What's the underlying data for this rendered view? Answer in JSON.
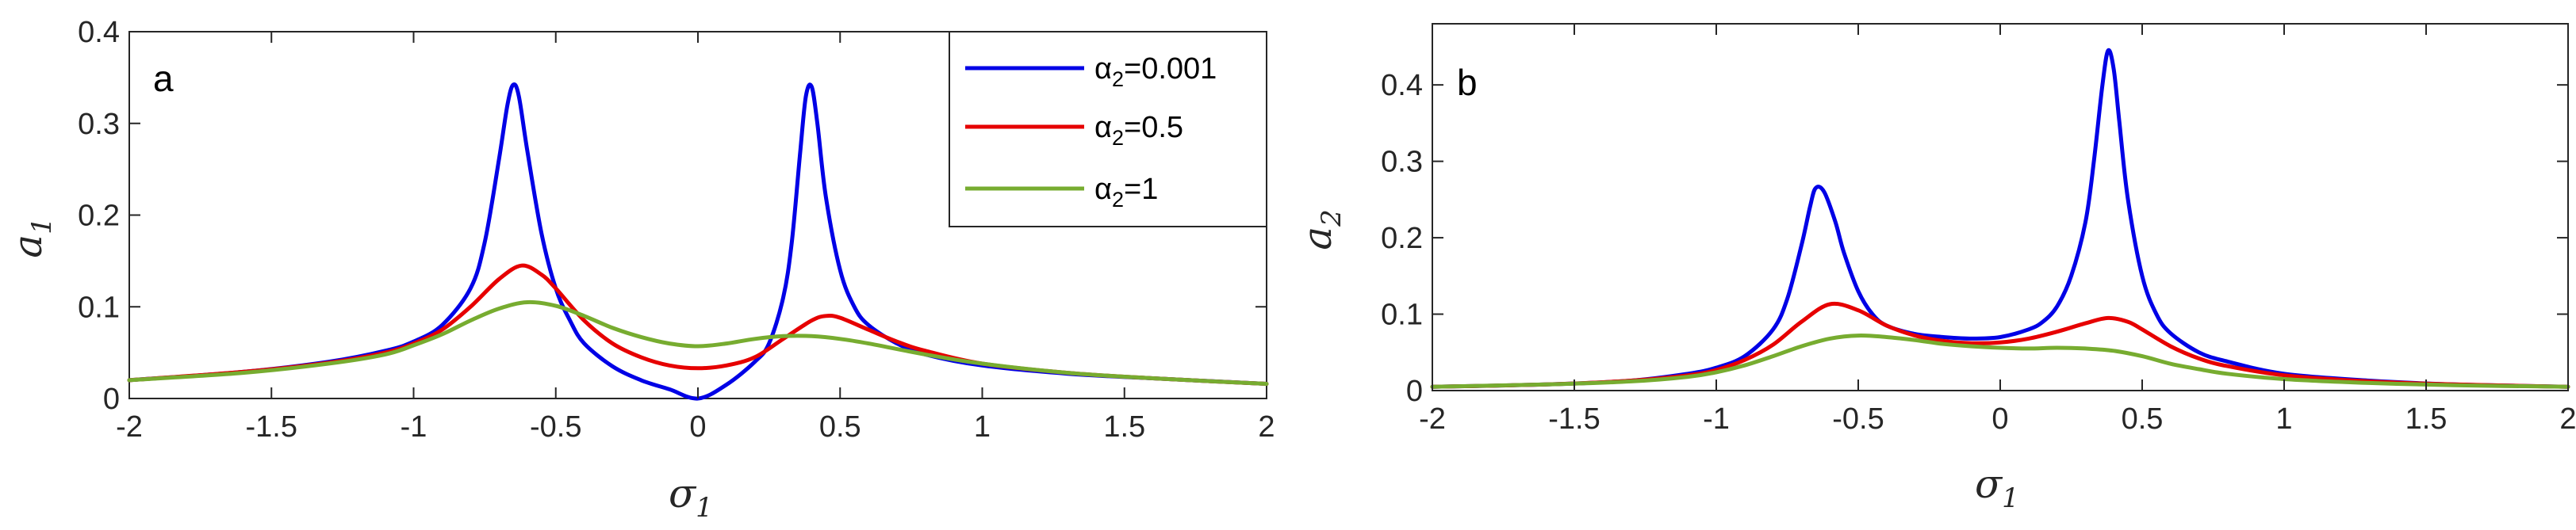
{
  "colors": {
    "alpha_0_001": "#0000E6",
    "alpha_0_5": "#E60000",
    "alpha_1": "#77AC30"
  },
  "chart_data": [
    {
      "type": "line",
      "panel_label": "a",
      "xlabel": "σ",
      "xlabel_sub": "1",
      "ylabel": "a",
      "ylabel_sub": "1",
      "xlim": [
        -2,
        2
      ],
      "ylim": [
        0,
        0.4
      ],
      "xticks": [
        -2,
        -1.5,
        -1,
        -0.5,
        0,
        0.5,
        1,
        1.5,
        2
      ],
      "xtick_labels": [
        "-2",
        "-1.5",
        "-1",
        "-0.5",
        "0",
        "0.5",
        "1",
        "1.5",
        "2"
      ],
      "yticks": [
        0,
        0.1,
        0.2,
        0.3,
        0.4
      ],
      "ytick_labels": [
        "0",
        "0.1",
        "0.2",
        "0.3",
        "0.4"
      ],
      "legend": {
        "position": "top-right",
        "entries": [
          {
            "prefix": "α",
            "sub": "2",
            "suffix": "=0.001",
            "color": "#0000E6"
          },
          {
            "prefix": "α",
            "sub": "2",
            "suffix": "=0.5",
            "color": "#E60000"
          },
          {
            "prefix": "α",
            "sub": "2",
            "suffix": "=1",
            "color": "#77AC30"
          }
        ]
      },
      "series": [
        {
          "color": "#0000E6",
          "x": [
            -2,
            -1.6,
            -1.3,
            -1.1,
            -1,
            -0.9,
            -0.8,
            -0.75,
            -0.7,
            -0.67,
            -0.65,
            -0.63,
            -0.6,
            -0.55,
            -0.5,
            -0.45,
            -0.4,
            -0.3,
            -0.2,
            -0.1,
            0,
            0.1,
            0.2,
            0.25,
            0.3,
            0.33,
            0.36,
            0.38,
            0.4,
            0.42,
            0.45,
            0.5,
            0.55,
            0.6,
            0.7,
            0.8,
            1,
            1.3,
            1.6,
            2
          ],
          "y": [
            0.02,
            0.029,
            0.04,
            0.052,
            0.062,
            0.08,
            0.12,
            0.17,
            0.26,
            0.32,
            0.342,
            0.33,
            0.27,
            0.18,
            0.12,
            0.085,
            0.06,
            0.035,
            0.02,
            0.01,
            0.0,
            0.015,
            0.04,
            0.06,
            0.11,
            0.17,
            0.27,
            0.33,
            0.34,
            0.3,
            0.22,
            0.14,
            0.1,
            0.08,
            0.06,
            0.048,
            0.036,
            0.027,
            0.022,
            0.016
          ]
        },
        {
          "color": "#E60000",
          "x": [
            -2,
            -1.6,
            -1.3,
            -1.1,
            -1,
            -0.9,
            -0.8,
            -0.7,
            -0.62,
            -0.55,
            -0.5,
            -0.4,
            -0.3,
            -0.2,
            -0.1,
            0,
            0.1,
            0.2,
            0.3,
            0.4,
            0.45,
            0.5,
            0.6,
            0.7,
            0.8,
            1,
            1.3,
            1.6,
            2
          ],
          "y": [
            0.02,
            0.029,
            0.039,
            0.05,
            0.06,
            0.075,
            0.1,
            0.13,
            0.145,
            0.135,
            0.12,
            0.085,
            0.06,
            0.045,
            0.036,
            0.033,
            0.036,
            0.045,
            0.065,
            0.085,
            0.09,
            0.088,
            0.075,
            0.062,
            0.052,
            0.038,
            0.028,
            0.022,
            0.016
          ]
        },
        {
          "color": "#77AC30",
          "x": [
            -2,
            -1.6,
            -1.3,
            -1.1,
            -1,
            -0.9,
            -0.8,
            -0.7,
            -0.6,
            -0.5,
            -0.4,
            -0.3,
            -0.2,
            -0.1,
            0,
            0.1,
            0.2,
            0.3,
            0.4,
            0.5,
            0.6,
            0.8,
            1,
            1.3,
            1.6,
            2
          ],
          "y": [
            0.02,
            0.028,
            0.038,
            0.048,
            0.058,
            0.07,
            0.085,
            0.098,
            0.105,
            0.101,
            0.09,
            0.077,
            0.067,
            0.06,
            0.057,
            0.06,
            0.065,
            0.068,
            0.068,
            0.065,
            0.06,
            0.048,
            0.038,
            0.028,
            0.022,
            0.016
          ]
        }
      ]
    },
    {
      "type": "line",
      "panel_label": "b",
      "xlabel": "σ",
      "xlabel_sub": "1",
      "ylabel": "a",
      "ylabel_sub": "2",
      "xlim": [
        -2,
        2
      ],
      "ylim": [
        0,
        0.48
      ],
      "xticks": [
        -2,
        -1.5,
        -1,
        -0.5,
        0,
        0.5,
        1,
        1.5,
        2
      ],
      "xtick_labels": [
        "-2",
        "-1.5",
        "-1",
        "-0.5",
        "0",
        "0.5",
        "1",
        "1.5",
        "2"
      ],
      "yticks": [
        0,
        0.1,
        0.2,
        0.3,
        0.4
      ],
      "ytick_labels": [
        "0",
        "0.1",
        "0.2",
        "0.3",
        "0.4"
      ],
      "series": [
        {
          "color": "#0000E6",
          "x": [
            -2,
            -1.6,
            -1.3,
            -1.1,
            -1,
            -0.9,
            -0.8,
            -0.75,
            -0.7,
            -0.67,
            -0.65,
            -0.62,
            -0.58,
            -0.55,
            -0.5,
            -0.45,
            -0.4,
            -0.3,
            -0.2,
            -0.1,
            0,
            0.1,
            0.15,
            0.2,
            0.25,
            0.3,
            0.33,
            0.36,
            0.38,
            0.4,
            0.42,
            0.45,
            0.5,
            0.55,
            0.6,
            0.7,
            0.8,
            1,
            1.3,
            1.6,
            2
          ],
          "y": [
            0.005,
            0.008,
            0.013,
            0.022,
            0.03,
            0.045,
            0.08,
            0.12,
            0.19,
            0.24,
            0.265,
            0.26,
            0.22,
            0.18,
            0.13,
            0.1,
            0.085,
            0.074,
            0.07,
            0.068,
            0.07,
            0.08,
            0.09,
            0.11,
            0.15,
            0.22,
            0.3,
            0.4,
            0.445,
            0.42,
            0.35,
            0.25,
            0.15,
            0.1,
            0.075,
            0.05,
            0.038,
            0.022,
            0.013,
            0.008,
            0.005
          ]
        },
        {
          "color": "#E60000",
          "x": [
            -2,
            -1.6,
            -1.3,
            -1.1,
            -1,
            -0.9,
            -0.8,
            -0.7,
            -0.6,
            -0.5,
            -0.4,
            -0.3,
            -0.2,
            -0.1,
            0,
            0.1,
            0.2,
            0.3,
            0.38,
            0.45,
            0.5,
            0.6,
            0.7,
            0.8,
            1,
            1.3,
            1.6,
            2
          ],
          "y": [
            0.005,
            0.008,
            0.013,
            0.02,
            0.027,
            0.04,
            0.06,
            0.09,
            0.113,
            0.105,
            0.085,
            0.072,
            0.065,
            0.062,
            0.063,
            0.068,
            0.077,
            0.088,
            0.095,
            0.09,
            0.08,
            0.058,
            0.042,
            0.032,
            0.02,
            0.012,
            0.008,
            0.005
          ]
        },
        {
          "color": "#77AC30",
          "x": [
            -2,
            -1.6,
            -1.3,
            -1.1,
            -1,
            -0.9,
            -0.8,
            -0.7,
            -0.6,
            -0.5,
            -0.4,
            -0.3,
            -0.2,
            -0.1,
            0,
            0.1,
            0.2,
            0.3,
            0.4,
            0.5,
            0.6,
            0.7,
            0.8,
            1,
            1.3,
            1.6,
            2
          ],
          "y": [
            0.005,
            0.008,
            0.012,
            0.018,
            0.024,
            0.033,
            0.045,
            0.058,
            0.068,
            0.072,
            0.07,
            0.066,
            0.061,
            0.058,
            0.056,
            0.055,
            0.056,
            0.055,
            0.052,
            0.045,
            0.035,
            0.028,
            0.022,
            0.015,
            0.01,
            0.007,
            0.005
          ]
        }
      ]
    }
  ]
}
